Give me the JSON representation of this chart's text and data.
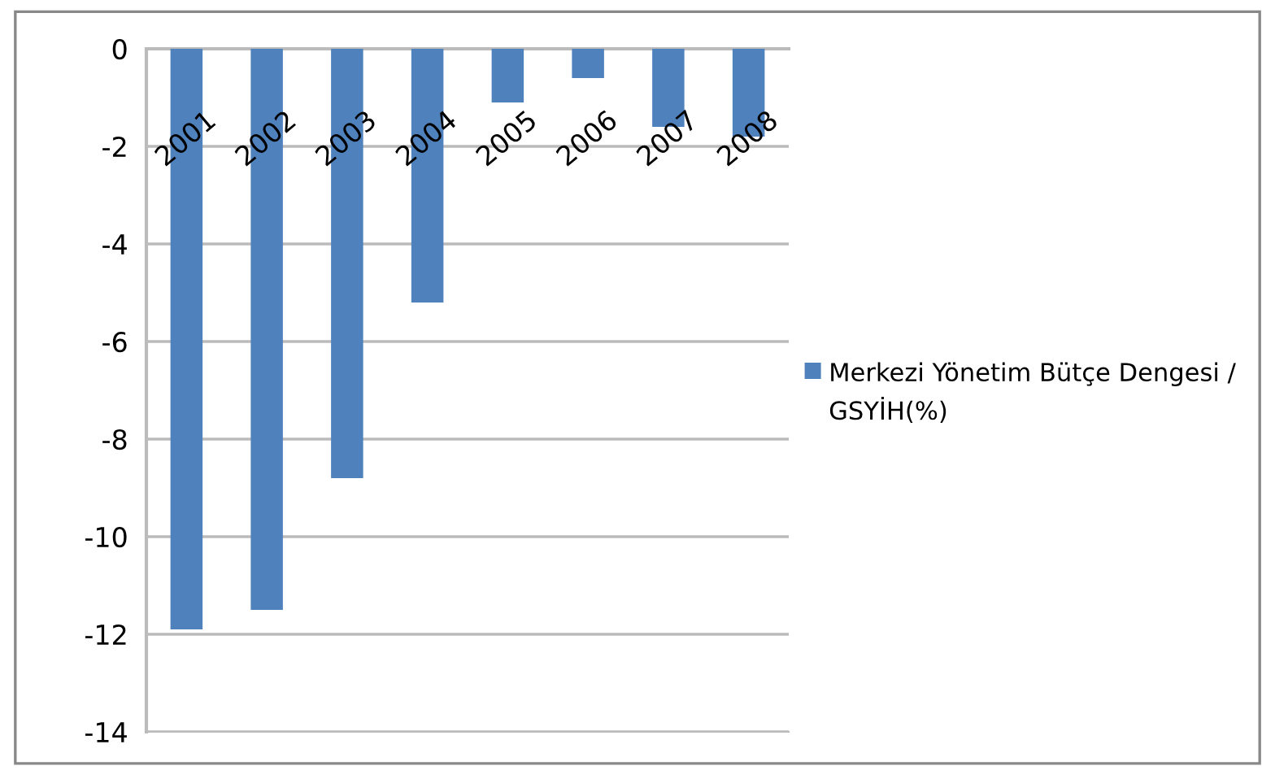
{
  "chart_data": {
    "type": "bar",
    "categories": [
      "2001",
      "2002",
      "2003",
      "2004",
      "2005",
      "2006",
      "2007",
      "2008"
    ],
    "series": [
      {
        "name": "Merkezi Yönetim Bütçe Dengesi / GSYİH(%)",
        "color": "#4f81bd",
        "values": [
          -11.9,
          -11.5,
          -8.8,
          -5.2,
          -1.1,
          -0.6,
          -1.6,
          -1.8
        ]
      }
    ],
    "ylim": [
      -14,
      0
    ],
    "yticks": [
      -14,
      -12,
      -10,
      -8,
      -6,
      -4,
      -2,
      0
    ],
    "grid": "y",
    "legend": "right"
  }
}
